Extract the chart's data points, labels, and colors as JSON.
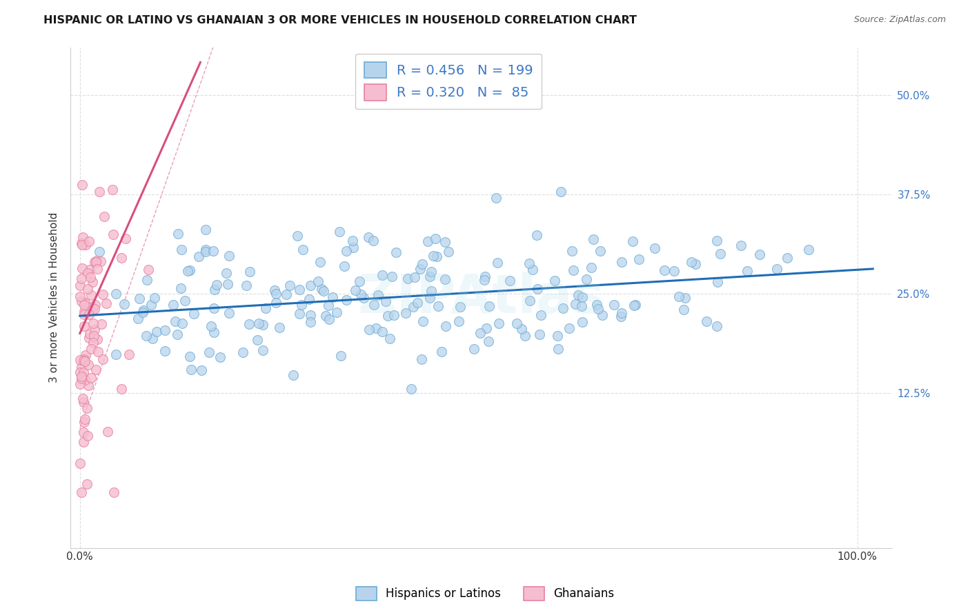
{
  "title": "HISPANIC OR LATINO VS GHANAIAN 3 OR MORE VEHICLES IN HOUSEHOLD CORRELATION CHART",
  "source": "Source: ZipAtlas.com",
  "ylabel": "3 or more Vehicles in Household",
  "blue_R": 0.456,
  "blue_N": 199,
  "pink_R": 0.32,
  "pink_N": 85,
  "blue_dot_face": "#b8d4ed",
  "blue_dot_edge": "#6aaad4",
  "pink_dot_face": "#f5bdd0",
  "pink_dot_edge": "#e8819f",
  "blue_line_color": "#1e6db5",
  "pink_line_color": "#d94f7a",
  "pink_dash_color": "#e8a0b5",
  "grid_color": "#dddddd",
  "bg_color": "#ffffff",
  "tick_color": "#3c78c8",
  "watermark": "ZIPAtlas",
  "legend_label_blue": "Hispanics or Latinos",
  "legend_label_pink": "Ghanaians",
  "blue_slope": 0.058,
  "blue_intercept": 0.222,
  "pink_slope": 2.2,
  "pink_intercept": 0.2,
  "pink_dash_slope": 2.8,
  "pink_dash_intercept": 0.08,
  "y_ticks": [
    0.125,
    0.25,
    0.375,
    0.5
  ],
  "y_tick_labels": [
    "12.5%",
    "25.0%",
    "37.5%",
    "50.0%"
  ],
  "x_lim": [
    -0.012,
    1.045
  ],
  "y_lim": [
    -0.07,
    0.56
  ]
}
